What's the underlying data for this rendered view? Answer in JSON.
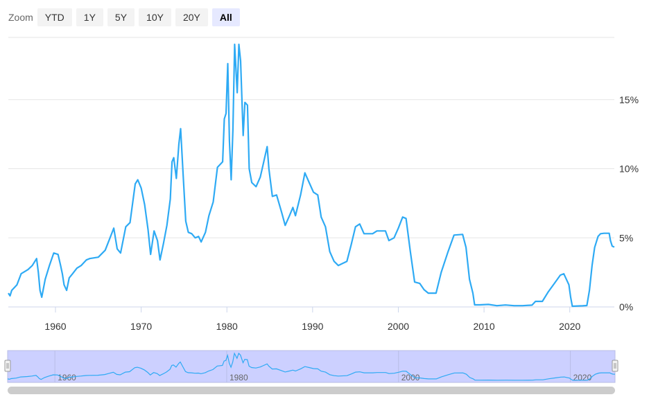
{
  "zoom": {
    "label": "Zoom",
    "buttons": [
      "YTD",
      "1Y",
      "5Y",
      "10Y",
      "20Y",
      "All"
    ],
    "active": "All"
  },
  "colors": {
    "line": "#2eaaf4",
    "navigator_fill": "#ccd0ff",
    "navigator_line": "#2eaaf4",
    "grid": "#e6e6e6"
  },
  "chart_data": {
    "type": "line",
    "title": "",
    "xlabel": "",
    "ylabel": "",
    "xlim": [
      1954.5,
      2025.2
    ],
    "ylim": [
      0,
      19.5
    ],
    "x_ticks": [
      "1960",
      "1970",
      "1980",
      "1990",
      "2000",
      "2010",
      "2020"
    ],
    "x_tick_values": [
      1960,
      1970,
      1980,
      1990,
      2000,
      2010,
      2020
    ],
    "y_ticks": [
      "0%",
      "5%",
      "10%",
      "15%"
    ],
    "y_tick_values": [
      0,
      5,
      10,
      15
    ],
    "series": [
      {
        "name": "",
        "points": [
          [
            1954.5,
            1.0
          ],
          [
            1954.7,
            0.8
          ],
          [
            1954.9,
            1.2
          ],
          [
            1955.5,
            1.6
          ],
          [
            1956.0,
            2.4
          ],
          [
            1956.8,
            2.7
          ],
          [
            1957.3,
            3.0
          ],
          [
            1957.8,
            3.5
          ],
          [
            1958.0,
            2.5
          ],
          [
            1958.2,
            1.2
          ],
          [
            1958.4,
            0.7
          ],
          [
            1958.8,
            2.0
          ],
          [
            1959.3,
            3.0
          ],
          [
            1959.8,
            3.9
          ],
          [
            1960.3,
            3.8
          ],
          [
            1960.6,
            3.0
          ],
          [
            1960.8,
            2.4
          ],
          [
            1961.0,
            1.6
          ],
          [
            1961.3,
            1.2
          ],
          [
            1961.6,
            2.1
          ],
          [
            1962.0,
            2.4
          ],
          [
            1962.5,
            2.8
          ],
          [
            1963.0,
            3.0
          ],
          [
            1963.6,
            3.4
          ],
          [
            1964.0,
            3.5
          ],
          [
            1965.0,
            3.6
          ],
          [
            1965.8,
            4.1
          ],
          [
            1966.3,
            4.9
          ],
          [
            1966.8,
            5.7
          ],
          [
            1967.2,
            4.2
          ],
          [
            1967.6,
            3.9
          ],
          [
            1968.2,
            5.8
          ],
          [
            1968.7,
            6.1
          ],
          [
            1969.3,
            8.9
          ],
          [
            1969.6,
            9.2
          ],
          [
            1970.0,
            8.6
          ],
          [
            1970.4,
            7.4
          ],
          [
            1970.8,
            5.6
          ],
          [
            1971.1,
            3.8
          ],
          [
            1971.5,
            5.5
          ],
          [
            1971.9,
            4.8
          ],
          [
            1972.2,
            3.4
          ],
          [
            1972.6,
            4.6
          ],
          [
            1973.0,
            5.9
          ],
          [
            1973.4,
            7.8
          ],
          [
            1973.6,
            10.5
          ],
          [
            1973.8,
            10.8
          ],
          [
            1974.1,
            9.3
          ],
          [
            1974.4,
            11.8
          ],
          [
            1974.6,
            12.9
          ],
          [
            1974.9,
            9.5
          ],
          [
            1975.2,
            6.2
          ],
          [
            1975.5,
            5.4
          ],
          [
            1975.9,
            5.3
          ],
          [
            1976.3,
            5.0
          ],
          [
            1976.7,
            5.1
          ],
          [
            1977.0,
            4.7
          ],
          [
            1977.5,
            5.4
          ],
          [
            1977.9,
            6.6
          ],
          [
            1978.4,
            7.6
          ],
          [
            1978.9,
            10.1
          ],
          [
            1979.5,
            10.5
          ],
          [
            1979.7,
            13.6
          ],
          [
            1979.9,
            14.0
          ],
          [
            1980.1,
            17.6
          ],
          [
            1980.3,
            12.0
          ],
          [
            1980.5,
            9.2
          ],
          [
            1980.7,
            12.8
          ],
          [
            1980.9,
            19.0
          ],
          [
            1981.2,
            15.5
          ],
          [
            1981.4,
            19.0
          ],
          [
            1981.6,
            17.8
          ],
          [
            1981.9,
            12.4
          ],
          [
            1982.1,
            14.8
          ],
          [
            1982.4,
            14.6
          ],
          [
            1982.6,
            10.0
          ],
          [
            1982.9,
            9.0
          ],
          [
            1983.4,
            8.7
          ],
          [
            1983.9,
            9.4
          ],
          [
            1984.3,
            10.5
          ],
          [
            1984.7,
            11.6
          ],
          [
            1984.9,
            10.0
          ],
          [
            1985.3,
            8.0
          ],
          [
            1985.8,
            8.1
          ],
          [
            1986.4,
            6.8
          ],
          [
            1986.8,
            5.9
          ],
          [
            1987.3,
            6.6
          ],
          [
            1987.7,
            7.2
          ],
          [
            1988.0,
            6.6
          ],
          [
            1988.6,
            8.1
          ],
          [
            1989.1,
            9.7
          ],
          [
            1989.6,
            9.0
          ],
          [
            1990.1,
            8.3
          ],
          [
            1990.6,
            8.1
          ],
          [
            1991.0,
            6.5
          ],
          [
            1991.5,
            5.8
          ],
          [
            1992.0,
            4.0
          ],
          [
            1992.5,
            3.3
          ],
          [
            1993.0,
            3.0
          ],
          [
            1994.0,
            3.3
          ],
          [
            1994.5,
            4.5
          ],
          [
            1995.0,
            5.8
          ],
          [
            1995.5,
            6.0
          ],
          [
            1996.0,
            5.3
          ],
          [
            1996.5,
            5.3
          ],
          [
            1997.0,
            5.3
          ],
          [
            1997.5,
            5.5
          ],
          [
            1998.5,
            5.5
          ],
          [
            1998.9,
            4.8
          ],
          [
            1999.5,
            5.0
          ],
          [
            2000.0,
            5.7
          ],
          [
            2000.5,
            6.5
          ],
          [
            2000.9,
            6.4
          ],
          [
            2001.4,
            4.0
          ],
          [
            2001.9,
            1.8
          ],
          [
            2002.5,
            1.7
          ],
          [
            2003.0,
            1.25
          ],
          [
            2003.5,
            1.0
          ],
          [
            2004.4,
            1.0
          ],
          [
            2005.0,
            2.5
          ],
          [
            2005.8,
            4.0
          ],
          [
            2006.5,
            5.2
          ],
          [
            2007.5,
            5.25
          ],
          [
            2007.9,
            4.3
          ],
          [
            2008.3,
            2.0
          ],
          [
            2008.7,
            1.0
          ],
          [
            2008.9,
            0.15
          ],
          [
            2009.5,
            0.15
          ],
          [
            2010.5,
            0.18
          ],
          [
            2011.5,
            0.09
          ],
          [
            2012.5,
            0.14
          ],
          [
            2013.5,
            0.09
          ],
          [
            2014.5,
            0.09
          ],
          [
            2015.6,
            0.13
          ],
          [
            2016.0,
            0.4
          ],
          [
            2016.8,
            0.4
          ],
          [
            2017.5,
            1.1
          ],
          [
            2018.2,
            1.7
          ],
          [
            2018.9,
            2.3
          ],
          [
            2019.3,
            2.4
          ],
          [
            2019.6,
            2.0
          ],
          [
            2019.9,
            1.6
          ],
          [
            2020.1,
            0.7
          ],
          [
            2020.3,
            0.05
          ],
          [
            2021.5,
            0.08
          ],
          [
            2022.0,
            0.1
          ],
          [
            2022.3,
            1.2
          ],
          [
            2022.6,
            3.0
          ],
          [
            2022.9,
            4.3
          ],
          [
            2023.3,
            5.1
          ],
          [
            2023.6,
            5.3
          ],
          [
            2024.0,
            5.33
          ],
          [
            2024.6,
            5.33
          ],
          [
            2024.75,
            4.8
          ],
          [
            2024.95,
            4.4
          ],
          [
            2025.2,
            4.33
          ]
        ]
      }
    ],
    "navigator": {
      "x_ticks": [
        "1960",
        "1980",
        "2000",
        "2020"
      ],
      "x_tick_values": [
        1960,
        1980,
        2000,
        2020
      ]
    }
  }
}
